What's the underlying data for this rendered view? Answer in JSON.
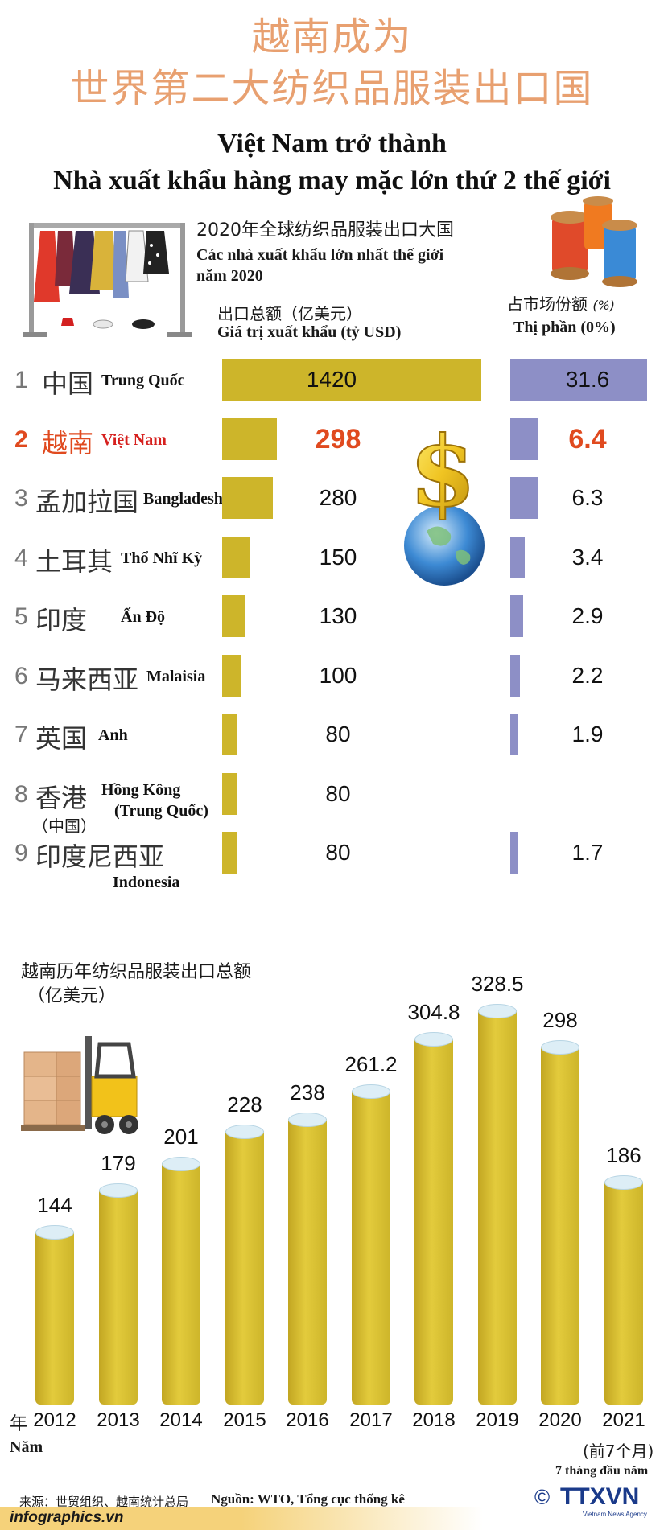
{
  "title_cn_line1": "越南成为",
  "title_cn_line2": "世界第二大纺织品服装出口国",
  "title_vn_line1": "Việt Nam trở thành",
  "title_vn_line2": "Nhà xuất khẩu hàng may mặc lớn thứ 2 thế giới",
  "section1": {
    "heading_cn": "2020年全球纺织品服装出口大国",
    "heading_vn_line1": "Các nhà xuất khẩu lớn nhất thế giới",
    "heading_vn_line2": "năm 2020",
    "export_header_cn": "出口总额（亿美元）",
    "export_header_vn": "Giá trị xuất khẩu (tỷ USD)",
    "share_header_cn": "占市场份额",
    "share_header_unit": "(%)",
    "share_header_vn": "Thị phần (0%)"
  },
  "colors": {
    "export_bar": "#cdb52a",
    "share_bar": "#8d8fc6",
    "highlight": "#e04a1f",
    "title_cn": "#e8a070"
  },
  "icons": [
    "clothes-rack-icon",
    "thread-spools-icon",
    "dollar-globe-icon",
    "forklift-boxes-icon",
    "ttxvn-logo"
  ],
  "chart_data": [
    {
      "type": "bar",
      "orientation": "horizontal",
      "title": "2020年全球纺织品服装出口大国 / Các nhà xuất khẩu lớn nhất thế giới năm 2020",
      "rows": [
        {
          "rank": "1",
          "name_cn": "中国",
          "name_vn": "Trung Quốc",
          "export": 1420,
          "share": 31.6,
          "share_label": "31.6"
        },
        {
          "rank": "2",
          "name_cn": "越南",
          "name_vn": "Việt Nam",
          "export": 298,
          "share": 6.4,
          "share_label": "6.4",
          "highlight": true
        },
        {
          "rank": "3",
          "name_cn": "孟加拉国",
          "name_vn": "Bangladesh",
          "export": 280,
          "share": 6.3,
          "share_label": "6.3"
        },
        {
          "rank": "4",
          "name_cn": "土耳其",
          "name_vn": "Thổ Nhĩ Kỳ",
          "export": 150,
          "share": 3.4,
          "share_label": "3.4"
        },
        {
          "rank": "5",
          "name_cn": "印度",
          "name_vn": "Ấn Độ",
          "export": 130,
          "share": 2.9,
          "share_label": "2.9"
        },
        {
          "rank": "6",
          "name_cn": "马来西亚",
          "name_vn": "Malaisia",
          "export": 100,
          "share": 2.2,
          "share_label": "2.2"
        },
        {
          "rank": "7",
          "name_cn": "英国",
          "name_vn": "Anh",
          "export": 80,
          "share": 1.9,
          "share_label": "1.9"
        },
        {
          "rank": "8",
          "name_cn": "香港",
          "name_cn_sub": "（中国）",
          "name_vn": "Hồng Kông",
          "name_vn_sub": "(Trung Quốc)",
          "export": 80,
          "share": null,
          "share_label": ""
        },
        {
          "rank": "9",
          "name_cn": "印度尼西亚",
          "name_vn": "Indonesia",
          "export": 80,
          "share": 1.7,
          "share_label": "1.7"
        }
      ],
      "export_labels": [
        "1420",
        "298",
        "280",
        "150",
        "130",
        "100",
        "80",
        "80",
        "80"
      ]
    },
    {
      "type": "bar",
      "title_cn_line1": "越南历年纺织品服装出口总额",
      "title_cn_line2": "（亿美元）",
      "categories": [
        "2012",
        "2013",
        "2014",
        "2015",
        "2016",
        "2017",
        "2018",
        "2019",
        "2020",
        "2021"
      ],
      "values": [
        144,
        179,
        201,
        228,
        238,
        261.2,
        304.8,
        328.5,
        298,
        186
      ],
      "value_labels": [
        "144",
        "179",
        "201",
        "228",
        "238",
        "261.2",
        "304.8",
        "328.5",
        "298",
        "186"
      ],
      "x_prefix_cn": "年",
      "xlabel_vn": "Năm",
      "note_cn": "(前7个月)",
      "note_vn": "7 tháng đầu năm"
    }
  ],
  "footer": {
    "source_cn": "来源：世贸组织、越南统计总局",
    "source_vn": "Nguồn: WTO, Tổng cục thống kê",
    "site": "infographics.vn",
    "copyright": "©",
    "logo_text": "TTXVN",
    "logo_sub": "Vietnam News Agency"
  }
}
